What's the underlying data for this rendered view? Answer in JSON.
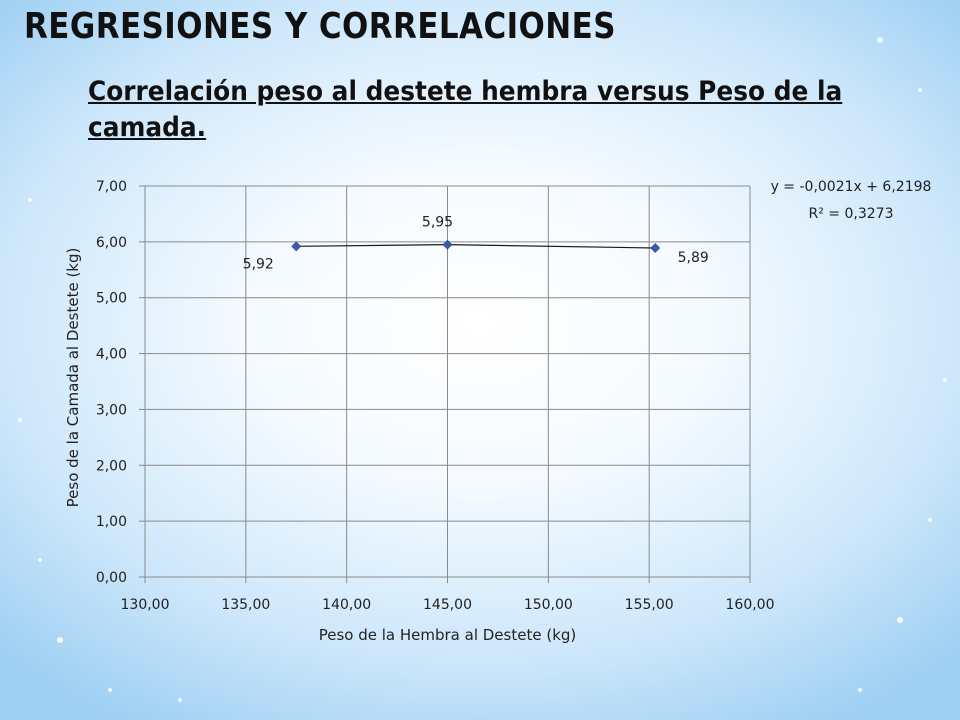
{
  "slide": {
    "title": "REGRESIONES Y CORRELACIONES",
    "subtitle": "Correlación peso al destete hembra versus Peso de la camada."
  },
  "chart_data": {
    "type": "scatter",
    "xlabel": "Peso de la Hembra al Destete (kg)",
    "ylabel": "Peso de la Camada al Destete (kg)",
    "xlim": [
      130,
      160
    ],
    "ylim": [
      0,
      7
    ],
    "x_ticks": [
      "130,00",
      "135,00",
      "140,00",
      "145,00",
      "150,00",
      "155,00",
      "160,00"
    ],
    "y_ticks": [
      "0,00",
      "1,00",
      "2,00",
      "3,00",
      "4,00",
      "5,00",
      "6,00",
      "7,00"
    ],
    "grid": true,
    "series": [
      {
        "points": [
          {
            "x": 137.5,
            "y": 5.92,
            "label": "5,92"
          },
          {
            "x": 145.0,
            "y": 5.95,
            "label": "5,95"
          },
          {
            "x": 155.3,
            "y": 5.89,
            "label": "5,89"
          }
        ],
        "color": "#3e5ba9"
      }
    ],
    "trendline": {
      "equation": "y = -0,0021x + 6,2198",
      "r_squared": "R² = 0,3273"
    },
    "colors": {
      "grid": "#8a8a8a",
      "marker": "#3e5ba9",
      "line": "#1a1a1a"
    }
  }
}
